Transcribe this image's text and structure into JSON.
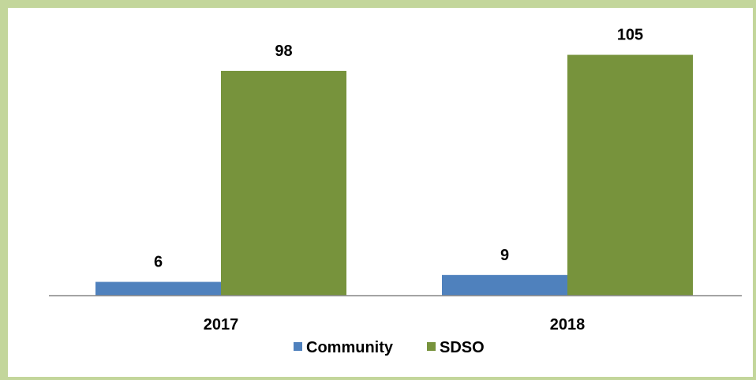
{
  "chart_data": {
    "type": "bar",
    "categories": [
      "2017",
      "2018"
    ],
    "series": [
      {
        "name": "Community",
        "values": [
          6,
          9
        ],
        "color": "#4f81bd"
      },
      {
        "name": "SDSO",
        "values": [
          98,
          105
        ],
        "color": "#77933c"
      }
    ],
    "ylim": [
      0,
      110
    ],
    "grid": false,
    "legend_position": "bottom",
    "data_labels": true,
    "title": "",
    "xlabel": "",
    "ylabel": ""
  },
  "colors": {
    "frame_border": "#c3d69b",
    "axis": "#868686"
  }
}
